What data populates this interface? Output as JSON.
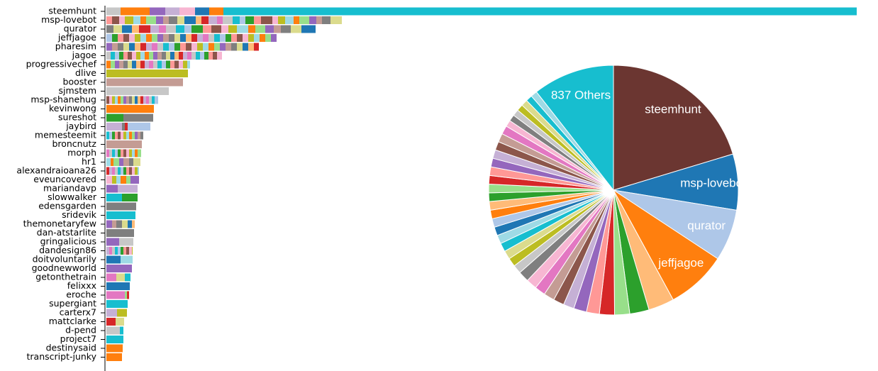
{
  "chart_data": [
    {
      "type": "bar",
      "palette": [
        "#1f77b4",
        "#aec7e8",
        "#ff7f0e",
        "#ffbb78",
        "#2ca02c",
        "#98df8a",
        "#d62728",
        "#ff9896",
        "#9467bd",
        "#c5b0d5",
        "#8c564b",
        "#c49c94",
        "#e377c2",
        "#f7b6d2",
        "#7f7f7f",
        "#c7c7c7",
        "#bcbd22",
        "#dbdb8d",
        "#17becf",
        "#9edae5"
      ],
      "categories": [
        "steemhunt",
        "msp-lovebot",
        "qurator",
        "jeffjagoe",
        "pharesim",
        "jagoe",
        "progressivechef",
        "dlive",
        "booster",
        "sjmstem",
        "msp-shanehug",
        "kevinwong",
        "sureshot",
        "jaybird",
        "memesteemit",
        "broncnutz",
        "morph",
        "hr1",
        "alexandraioana26",
        "eveuncovered",
        "mariandavp",
        "slowwalker",
        "edensgarden",
        "sridevik",
        "themonetaryfew",
        "dan-atstarlite",
        "gringalicious",
        "dandesign86",
        "doitvoluntarily",
        "goodnewworld",
        "getonthetrain",
        "felixxx",
        "eroche",
        "supergiant",
        "carterx7",
        "mattclarke",
        "d-pend",
        "project7",
        "destinysaid",
        "transcript-junky"
      ],
      "segments": [
        [
          20,
          41,
          22,
          20,
          22,
          20,
          20,
          893
        ],
        [
          8,
          10,
          8,
          12,
          10,
          8,
          14,
          10,
          8,
          12,
          10,
          16,
          8,
          10,
          12,
          8,
          14,
          10,
          8,
          12,
          10,
          16,
          8,
          10,
          12,
          8,
          14,
          10,
          8,
          12,
          16
        ],
        [
          10,
          12,
          14,
          10,
          16,
          12,
          10,
          14,
          12,
          10,
          16,
          12,
          14,
          10,
          12,
          16,
          10,
          14,
          12,
          10,
          14,
          15,
          20
        ],
        [
          8,
          8,
          8,
          8,
          8,
          8,
          8,
          8,
          8,
          8,
          8,
          8,
          8,
          8,
          8,
          8,
          8,
          8,
          8,
          8,
          8,
          8,
          8,
          8,
          8,
          8,
          8,
          8,
          8,
          8
        ],
        [
          8,
          8,
          8,
          8,
          8,
          8,
          8,
          8,
          8,
          8,
          8,
          8,
          8,
          8,
          8,
          8,
          8,
          8,
          8,
          8,
          8,
          8,
          8,
          8,
          8,
          8,
          7
        ],
        [
          6,
          6,
          6,
          6,
          6,
          6,
          6,
          6,
          6,
          6,
          6,
          6,
          6,
          6,
          6,
          6,
          6,
          6,
          6,
          6,
          6,
          6,
          6,
          6,
          6,
          6,
          7
        ],
        [
          6,
          6,
          6,
          6,
          6,
          6,
          6,
          6,
          6,
          6,
          6,
          6,
          6,
          6,
          6,
          6,
          6,
          6,
          6,
          4
        ],
        [
          115
        ],
        [
          108
        ],
        [
          88
        ],
        [
          4,
          4,
          4,
          4,
          4,
          4,
          4,
          4,
          4,
          4,
          4,
          4,
          4,
          4,
          4,
          4,
          4,
          5
        ],
        [
          67
        ],
        [
          24,
          42
        ],
        [
          22,
          4,
          4,
          32
        ],
        [
          4,
          4,
          4,
          4,
          4,
          4,
          4,
          4,
          4,
          4,
          4,
          4,
          4
        ],
        [
          50
        ],
        [
          4,
          4,
          4,
          4,
          4,
          4,
          4,
          4,
          4,
          4,
          4,
          5
        ],
        [
          6,
          4,
          8,
          6,
          8,
          6,
          10
        ],
        [
          4,
          4,
          4,
          4,
          4,
          4,
          4,
          4,
          4,
          4,
          4,
          2
        ],
        [
          8,
          6,
          6,
          8,
          6,
          12
        ],
        [
          16,
          28
        ],
        [
          22,
          22
        ],
        [
          42
        ],
        [
          41
        ],
        [
          8,
          6,
          8,
          8,
          6,
          4
        ],
        [
          39
        ],
        [
          18,
          20
        ],
        [
          4,
          4,
          4,
          4,
          4,
          4,
          4,
          4,
          4,
          1
        ],
        [
          20,
          17
        ],
        [
          36
        ],
        [
          14,
          12,
          8
        ],
        [
          33
        ],
        [
          26,
          3,
          3
        ],
        [
          30
        ],
        [
          15,
          14
        ],
        [
          13,
          12
        ],
        [
          19,
          5
        ],
        [
          24
        ],
        [
          23
        ],
        [
          22
        ]
      ],
      "colors": [
        [
          15,
          2,
          8,
          9,
          13,
          0,
          2,
          18
        ],
        null,
        null,
        null,
        null,
        null,
        null,
        [
          16
        ],
        [
          11
        ],
        [
          15
        ],
        null,
        [
          2
        ],
        [
          4,
          14
        ],
        [
          9,
          14,
          6,
          1
        ],
        null,
        [
          11
        ],
        null,
        null,
        null,
        null,
        [
          8,
          9
        ],
        [
          18,
          4
        ],
        [
          14
        ],
        [
          18
        ],
        null,
        [
          14
        ],
        [
          8,
          15
        ],
        null,
        [
          0,
          19
        ],
        [
          8
        ],
        [
          12,
          17,
          18
        ],
        [
          0
        ],
        [
          12,
          5,
          6
        ],
        [
          18
        ],
        [
          9,
          16
        ],
        [
          6,
          17
        ],
        [
          15,
          18
        ],
        [
          18
        ],
        [
          2
        ],
        [
          2
        ]
      ]
    },
    {
      "type": "pie",
      "labels": [
        "steemhunt",
        "msp-lovebot",
        "qurator",
        "jeffjagoe",
        null,
        null,
        null,
        null,
        null,
        null,
        null,
        null,
        null,
        null,
        null,
        null,
        null,
        null,
        null,
        null,
        null,
        null,
        null,
        null,
        null,
        null,
        null,
        null,
        null,
        null,
        null,
        null,
        null,
        null,
        null,
        null,
        null,
        null,
        null,
        null,
        null,
        "837 Others"
      ],
      "values": [
        73,
        26,
        24,
        28,
        12,
        9,
        7,
        7,
        6,
        6,
        5,
        5,
        5,
        5,
        5,
        5,
        4,
        4,
        4,
        4,
        4,
        4,
        4,
        4,
        4,
        4,
        4,
        4,
        4,
        4,
        4,
        4,
        4,
        4,
        3,
        3,
        3,
        3,
        3,
        3,
        3,
        38
      ],
      "colors": [
        "#6b3631",
        "#1f77b4",
        "#aec7e8",
        "#ff7f0e",
        "#ffbb78",
        "#2ca02c",
        "#98df8a",
        "#d62728",
        "#ff9896",
        "#9467bd",
        "#c5b0d5",
        "#8c564b",
        "#c49c94",
        "#e377c2",
        "#f7b6d2",
        "#7f7f7f",
        "#c7c7c7",
        "#bcbd22",
        "#dbdb8d",
        "#17becf",
        "#9edae5",
        "#1f77b4",
        "#aec7e8",
        "#ff7f0e",
        "#ffbb78",
        "#2ca02c",
        "#98df8a",
        "#d62728",
        "#ff9896",
        "#9467bd",
        "#c5b0d5",
        "#8c564b",
        "#c49c94",
        "#e377c2",
        "#f7b6d2",
        "#7f7f7f",
        "#c7c7c7",
        "#bcbd22",
        "#dbdb8d",
        "#17becf",
        "#9edae5",
        "#17becf"
      ]
    }
  ]
}
